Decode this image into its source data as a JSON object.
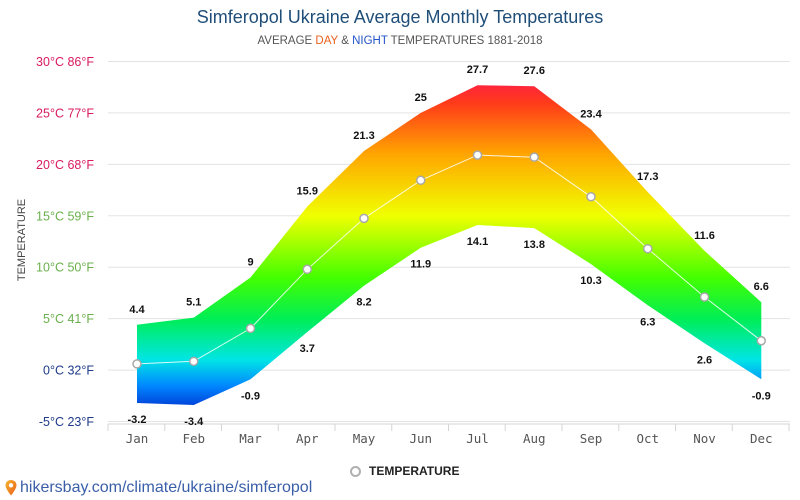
{
  "header": {
    "title": "Simferopol Ukraine Average Monthly Temperatures",
    "subtitle_prefix": "AVERAGE ",
    "subtitle_day": "DAY",
    "subtitle_amp": " & ",
    "subtitle_night": "NIGHT",
    "subtitle_suffix": " TEMPERATURES 1881-2018"
  },
  "legend": {
    "label": "TEMPERATURE",
    "marker": "circle-marker-icon"
  },
  "source": {
    "text": "hikersbay.com/climate/ukraine/simferopol",
    "icon": "map-pin-icon"
  },
  "colors": {
    "title": "#1f4e79",
    "day_text": "#e8601c",
    "night_text": "#2554c7",
    "hot_axis": "#d81b60",
    "mild_axis": "#6ab04c",
    "cold_axis": "#1e3a8a",
    "link": "#3a5fa8"
  },
  "chart_data": {
    "type": "area",
    "title": "Simferopol Ukraine Average Monthly Temperatures",
    "subtitle": "AVERAGE DAY & NIGHT TEMPERATURES 1881-2018",
    "xlabel": "",
    "ylabel": "TEMPERATURE",
    "categories": [
      "Jan",
      "Feb",
      "Mar",
      "Apr",
      "May",
      "Jun",
      "Jul",
      "Aug",
      "Sep",
      "Oct",
      "Nov",
      "Dec"
    ],
    "ylim": [
      -5,
      30
    ],
    "grid": true,
    "legend_position": "bottom-center",
    "y_ticks": [
      {
        "value": 30,
        "label": "30°C 86°F",
        "color": "#d81b60"
      },
      {
        "value": 25,
        "label": "25°C 77°F",
        "color": "#d81b60"
      },
      {
        "value": 20,
        "label": "20°C 68°F",
        "color": "#d81b60"
      },
      {
        "value": 15,
        "label": "15°C 59°F",
        "color": "#6ab04c"
      },
      {
        "value": 10,
        "label": "10°C 50°F",
        "color": "#6ab04c"
      },
      {
        "value": 5,
        "label": "5°C 41°F",
        "color": "#6ab04c"
      },
      {
        "value": 0,
        "label": "0°C 32°F",
        "color": "#1e3a8a"
      },
      {
        "value": -5,
        "label": "-5°C 23°F",
        "color": "#1e3a8a"
      }
    ],
    "series": [
      {
        "name": "Day",
        "values": [
          4.4,
          5.1,
          9,
          15.9,
          21.3,
          25,
          27.7,
          27.6,
          23.4,
          17.3,
          11.6,
          6.6
        ]
      },
      {
        "name": "Night",
        "values": [
          -3.2,
          -3.4,
          -0.9,
          3.7,
          8.2,
          11.9,
          14.1,
          13.8,
          10.3,
          6.3,
          2.6,
          -0.9
        ]
      },
      {
        "name": "TEMPERATURE",
        "values": [
          0.6,
          0.85,
          4.05,
          9.8,
          14.75,
          18.45,
          20.9,
          20.7,
          16.85,
          11.8,
          7.1,
          2.85
        ]
      }
    ],
    "gradient_stops": [
      {
        "value": 30,
        "color": "#ff0a6c"
      },
      {
        "value": 26,
        "color": "#ff3a1a"
      },
      {
        "value": 21,
        "color": "#ffa500"
      },
      {
        "value": 15,
        "color": "#f0ff00"
      },
      {
        "value": 9,
        "color": "#44ff00"
      },
      {
        "value": 5,
        "color": "#00ee55"
      },
      {
        "value": 1,
        "color": "#00e5e5"
      },
      {
        "value": -1.5,
        "color": "#0088ff"
      },
      {
        "value": -4,
        "color": "#0030d0"
      }
    ]
  }
}
